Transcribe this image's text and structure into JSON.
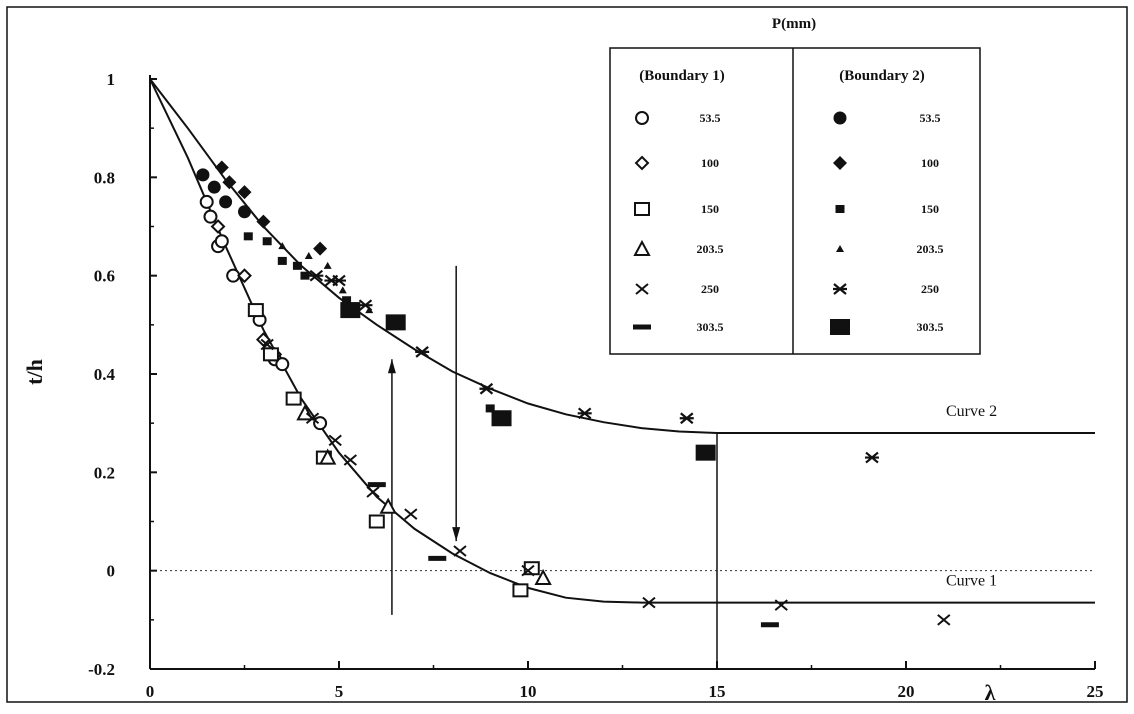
{
  "chart_data": {
    "type": "scatter",
    "xlabel": "λ",
    "ylabel": "t/h",
    "xlim": [
      0,
      25
    ],
    "ylim": [
      -0.2,
      1.05
    ],
    "x_ticks": [
      "0",
      "5",
      "10",
      "15",
      "20",
      "25"
    ],
    "y_ticks": [
      "-0.2",
      "0",
      "0.2",
      "0.4",
      "0.6",
      "0.8",
      "1"
    ],
    "legend": {
      "title": "P(mm)",
      "group_headers": [
        "(Boundary 1)",
        "(Boundary 2)"
      ],
      "rows": [
        {
          "b1_marker": "open-circle",
          "b1_value": "53.5",
          "b2_marker": "filled-circle",
          "b2_value": "53.5"
        },
        {
          "b1_marker": "open-diamond",
          "b1_value": "100",
          "b2_marker": "filled-diamond",
          "b2_value": "100"
        },
        {
          "b1_marker": "open-square",
          "b1_value": "150",
          "b2_marker": "filled-square-small",
          "b2_value": "150"
        },
        {
          "b1_marker": "open-triangle",
          "b1_value": "203.5",
          "b2_marker": "filled-triangle-small",
          "b2_value": "203.5"
        },
        {
          "b1_marker": "cross",
          "b1_value": "250",
          "b2_marker": "asterisk",
          "b2_value": "250"
        },
        {
          "b1_marker": "dash",
          "b1_value": "303.5",
          "b2_marker": "filled-square-large",
          "b2_value": "303.5"
        }
      ]
    },
    "curves": [
      {
        "label": "Curve 1",
        "points": [
          [
            0,
            1
          ],
          [
            1,
            0.84
          ],
          [
            2,
            0.66
          ],
          [
            3,
            0.49
          ],
          [
            4,
            0.35
          ],
          [
            5,
            0.24
          ],
          [
            6,
            0.15
          ],
          [
            7,
            0.085
          ],
          [
            8,
            0.035
          ],
          [
            9,
            -0.005
          ],
          [
            10,
            -0.035
          ],
          [
            11,
            -0.055
          ],
          [
            12,
            -0.063
          ],
          [
            13,
            -0.065
          ],
          [
            25,
            -0.065
          ]
        ]
      },
      {
        "label": "Curve 2",
        "points": [
          [
            0,
            1
          ],
          [
            1,
            0.9
          ],
          [
            2,
            0.795
          ],
          [
            3,
            0.7
          ],
          [
            4,
            0.62
          ],
          [
            5,
            0.555
          ],
          [
            6,
            0.5
          ],
          [
            7,
            0.45
          ],
          [
            8,
            0.405
          ],
          [
            9,
            0.37
          ],
          [
            10,
            0.34
          ],
          [
            11,
            0.318
          ],
          [
            12,
            0.302
          ],
          [
            13,
            0.29
          ],
          [
            14,
            0.283
          ],
          [
            15,
            0.28
          ],
          [
            25,
            0.28
          ]
        ]
      }
    ],
    "series": [
      {
        "name": "Boundary 1, 53.5",
        "marker": "open-circle",
        "points": [
          [
            1.5,
            0.75
          ],
          [
            1.6,
            0.72
          ],
          [
            1.8,
            0.66
          ],
          [
            1.9,
            0.67
          ],
          [
            2.2,
            0.6
          ],
          [
            2.9,
            0.51
          ],
          [
            3.3,
            0.43
          ],
          [
            3.5,
            0.42
          ],
          [
            4.5,
            0.3
          ]
        ]
      },
      {
        "name": "Boundary 1, 100",
        "marker": "open-diamond",
        "points": [
          [
            1.8,
            0.7
          ],
          [
            2.5,
            0.6
          ],
          [
            3.0,
            0.47
          ],
          [
            3.3,
            0.44
          ]
        ]
      },
      {
        "name": "Boundary 1, 150",
        "marker": "open-square",
        "points": [
          [
            2.8,
            0.53
          ],
          [
            3.2,
            0.44
          ],
          [
            3.8,
            0.35
          ],
          [
            4.6,
            0.23
          ],
          [
            6.0,
            0.1
          ],
          [
            9.8,
            -0.04
          ],
          [
            10.1,
            0.005
          ]
        ]
      },
      {
        "name": "Boundary 1, 203.5",
        "marker": "open-triangle",
        "points": [
          [
            4.1,
            0.32
          ],
          [
            4.7,
            0.23
          ],
          [
            6.3,
            0.13
          ],
          [
            10.4,
            -0.015
          ]
        ]
      },
      {
        "name": "Boundary 1, 250",
        "marker": "cross",
        "points": [
          [
            3.1,
            0.46
          ],
          [
            4.3,
            0.31
          ],
          [
            4.9,
            0.265
          ],
          [
            5.3,
            0.225
          ],
          [
            5.9,
            0.16
          ],
          [
            6.9,
            0.115
          ],
          [
            8.2,
            0.04
          ],
          [
            10.0,
            0.0
          ],
          [
            13.2,
            -0.065
          ],
          [
            16.7,
            -0.07
          ],
          [
            21.0,
            -0.1
          ]
        ]
      },
      {
        "name": "Boundary 1, 303.5",
        "marker": "dash",
        "points": [
          [
            6.0,
            0.175
          ],
          [
            7.6,
            0.025
          ],
          [
            16.4,
            -0.11
          ]
        ]
      },
      {
        "name": "Boundary 2, 53.5",
        "marker": "filled-circle",
        "points": [
          [
            1.4,
            0.805
          ],
          [
            1.7,
            0.78
          ],
          [
            2.0,
            0.75
          ],
          [
            2.5,
            0.73
          ]
        ]
      },
      {
        "name": "Boundary 2, 100",
        "marker": "filled-diamond",
        "points": [
          [
            1.9,
            0.82
          ],
          [
            2.1,
            0.79
          ],
          [
            2.5,
            0.77
          ],
          [
            3.0,
            0.71
          ],
          [
            4.5,
            0.655
          ]
        ]
      },
      {
        "name": "Boundary 2, 150",
        "marker": "filled-square-small",
        "points": [
          [
            2.6,
            0.68
          ],
          [
            3.1,
            0.67
          ],
          [
            3.5,
            0.63
          ],
          [
            3.9,
            0.62
          ],
          [
            4.1,
            0.6
          ],
          [
            5.2,
            0.55
          ],
          [
            9.0,
            0.33
          ]
        ]
      },
      {
        "name": "Boundary 2, 203.5",
        "marker": "filled-triangle-small",
        "points": [
          [
            3.5,
            0.66
          ],
          [
            4.2,
            0.64
          ],
          [
            4.7,
            0.62
          ],
          [
            5.1,
            0.57
          ],
          [
            5.8,
            0.53
          ]
        ]
      },
      {
        "name": "Boundary 2, 250",
        "marker": "asterisk",
        "points": [
          [
            4.4,
            0.6
          ],
          [
            4.8,
            0.59
          ],
          [
            5.0,
            0.59
          ],
          [
            5.7,
            0.54
          ],
          [
            7.2,
            0.445
          ],
          [
            8.9,
            0.37
          ],
          [
            11.5,
            0.32
          ],
          [
            14.2,
            0.31
          ],
          [
            19.1,
            0.23
          ]
        ]
      },
      {
        "name": "Boundary 2, 303.5",
        "marker": "filled-square-large",
        "points": [
          [
            5.3,
            0.53
          ],
          [
            6.5,
            0.505
          ],
          [
            9.3,
            0.31
          ],
          [
            14.7,
            0.24
          ]
        ]
      }
    ],
    "guide_lines": [
      {
        "kind": "up-arrow",
        "x": 6.4,
        "y_from": -0.09,
        "y_to": 0.43
      },
      {
        "kind": "down-arrow",
        "x": 8.1,
        "y_from": 0.62,
        "y_to": 0.06
      },
      {
        "kind": "vertical",
        "x": 15.0,
        "y_from": -0.2,
        "y_to": 0.28
      }
    ],
    "zero_line": "dotted",
    "grid": false
  }
}
